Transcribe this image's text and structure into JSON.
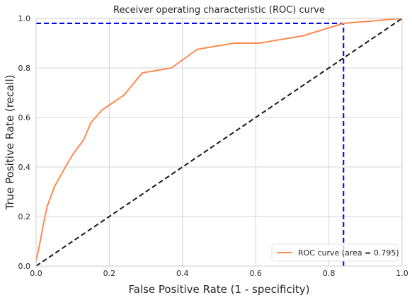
{
  "chart_data": {
    "type": "line",
    "title": "Receiver operating characteristic (ROC) curve",
    "xlabel": "False Positive Rate (1 - specificity)",
    "ylabel": "True Positive Rate (recall)",
    "xlim": [
      0.0,
      1.0
    ],
    "ylim": [
      0.0,
      1.0
    ],
    "xticks": [
      "0.0",
      "0.2",
      "0.4",
      "0.6",
      "0.8",
      "1.0"
    ],
    "yticks": [
      "0.0",
      "0.2",
      "0.4",
      "0.6",
      "0.8",
      "1.0"
    ],
    "grid": true,
    "legend_position": "lower-right",
    "series": [
      {
        "name": "ROC curve (area = 0.795)",
        "color": "#ff8a50",
        "style": "solid",
        "x": [
          0.0,
          0.01,
          0.02,
          0.03,
          0.05,
          0.08,
          0.1,
          0.13,
          0.15,
          0.18,
          0.24,
          0.29,
          0.37,
          0.44,
          0.54,
          0.61,
          0.73,
          0.84,
          1.0
        ],
        "y": [
          0.02,
          0.09,
          0.17,
          0.24,
          0.32,
          0.4,
          0.45,
          0.51,
          0.58,
          0.63,
          0.69,
          0.78,
          0.8,
          0.875,
          0.9,
          0.9,
          0.93,
          0.98,
          1.0
        ]
      }
    ],
    "reference_lines": [
      {
        "kind": "diagonal",
        "color": "#1a1a1a",
        "style": "dashed",
        "x": [
          0.0,
          1.0
        ],
        "y": [
          0.0,
          1.0
        ]
      },
      {
        "kind": "horizontal",
        "color": "#0000ee",
        "style": "dashed",
        "x": [
          0.0,
          0.84
        ],
        "y": [
          0.98,
          0.98
        ]
      },
      {
        "kind": "vertical",
        "color": "#0000ee",
        "style": "dashed",
        "x": [
          0.84,
          0.84
        ],
        "y": [
          0.0,
          0.98
        ]
      }
    ]
  }
}
